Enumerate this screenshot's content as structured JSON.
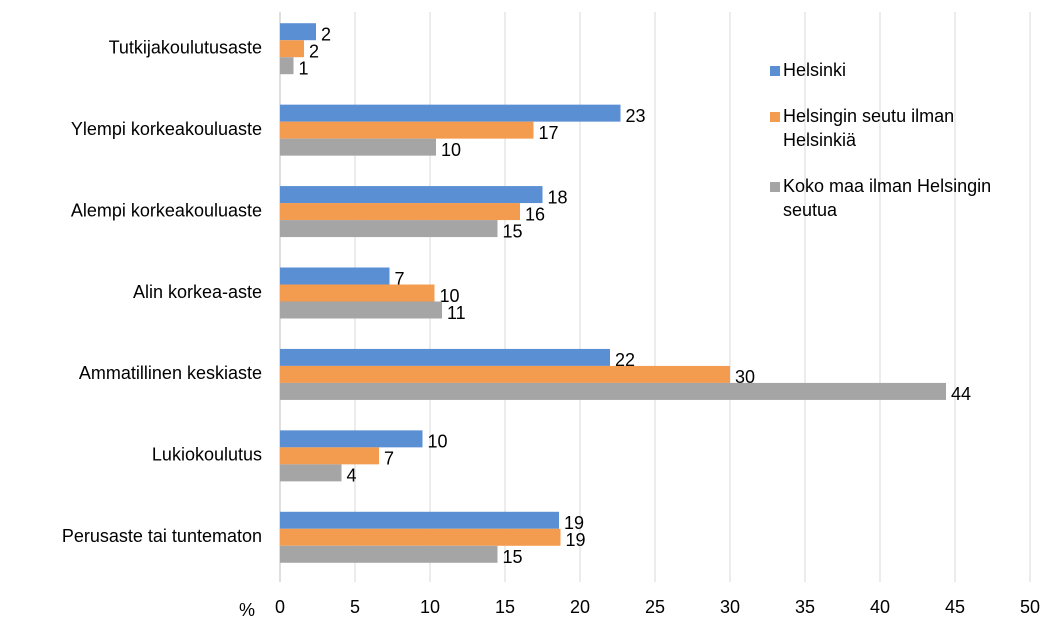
{
  "chart_data": {
    "type": "hbar",
    "categories": [
      "Tutkijakoulutusaste",
      "Ylempi korkeakouluaste",
      "Alempi korkeakouluaste",
      "Alin korkea-aste",
      "Ammatillinen keskiaste",
      "Lukiokoulutus",
      "Perusaste tai tuntematon"
    ],
    "series": [
      {
        "name": "Helsinki",
        "color": "#5b8fd4",
        "values": [
          2.4,
          22.7,
          17.5,
          7.3,
          22.0,
          9.5,
          18.6
        ],
        "value_labels": [
          "2",
          "23",
          "18",
          "7",
          "22",
          "10",
          "19"
        ]
      },
      {
        "name": "Helsingin seutu ilman Helsinkiä",
        "color": "#f39c50",
        "values": [
          1.6,
          16.9,
          16.0,
          10.3,
          30.0,
          6.6,
          18.7
        ],
        "value_labels": [
          "2",
          "17",
          "16",
          "10",
          "30",
          "7",
          "19"
        ]
      },
      {
        "name": "Koko maa ilman Helsingin seutua",
        "color": "#a5a5a5",
        "values": [
          0.9,
          10.4,
          14.5,
          10.8,
          44.4,
          4.1,
          14.5
        ],
        "value_labels": [
          "1",
          "10",
          "15",
          "11",
          "44",
          "4",
          "15"
        ]
      }
    ],
    "x_label": "%",
    "xlim": [
      0,
      50
    ],
    "xticks": [
      0,
      5,
      10,
      15,
      20,
      25,
      30,
      35,
      40,
      45,
      50
    ],
    "grid": true,
    "legend": "right"
  }
}
